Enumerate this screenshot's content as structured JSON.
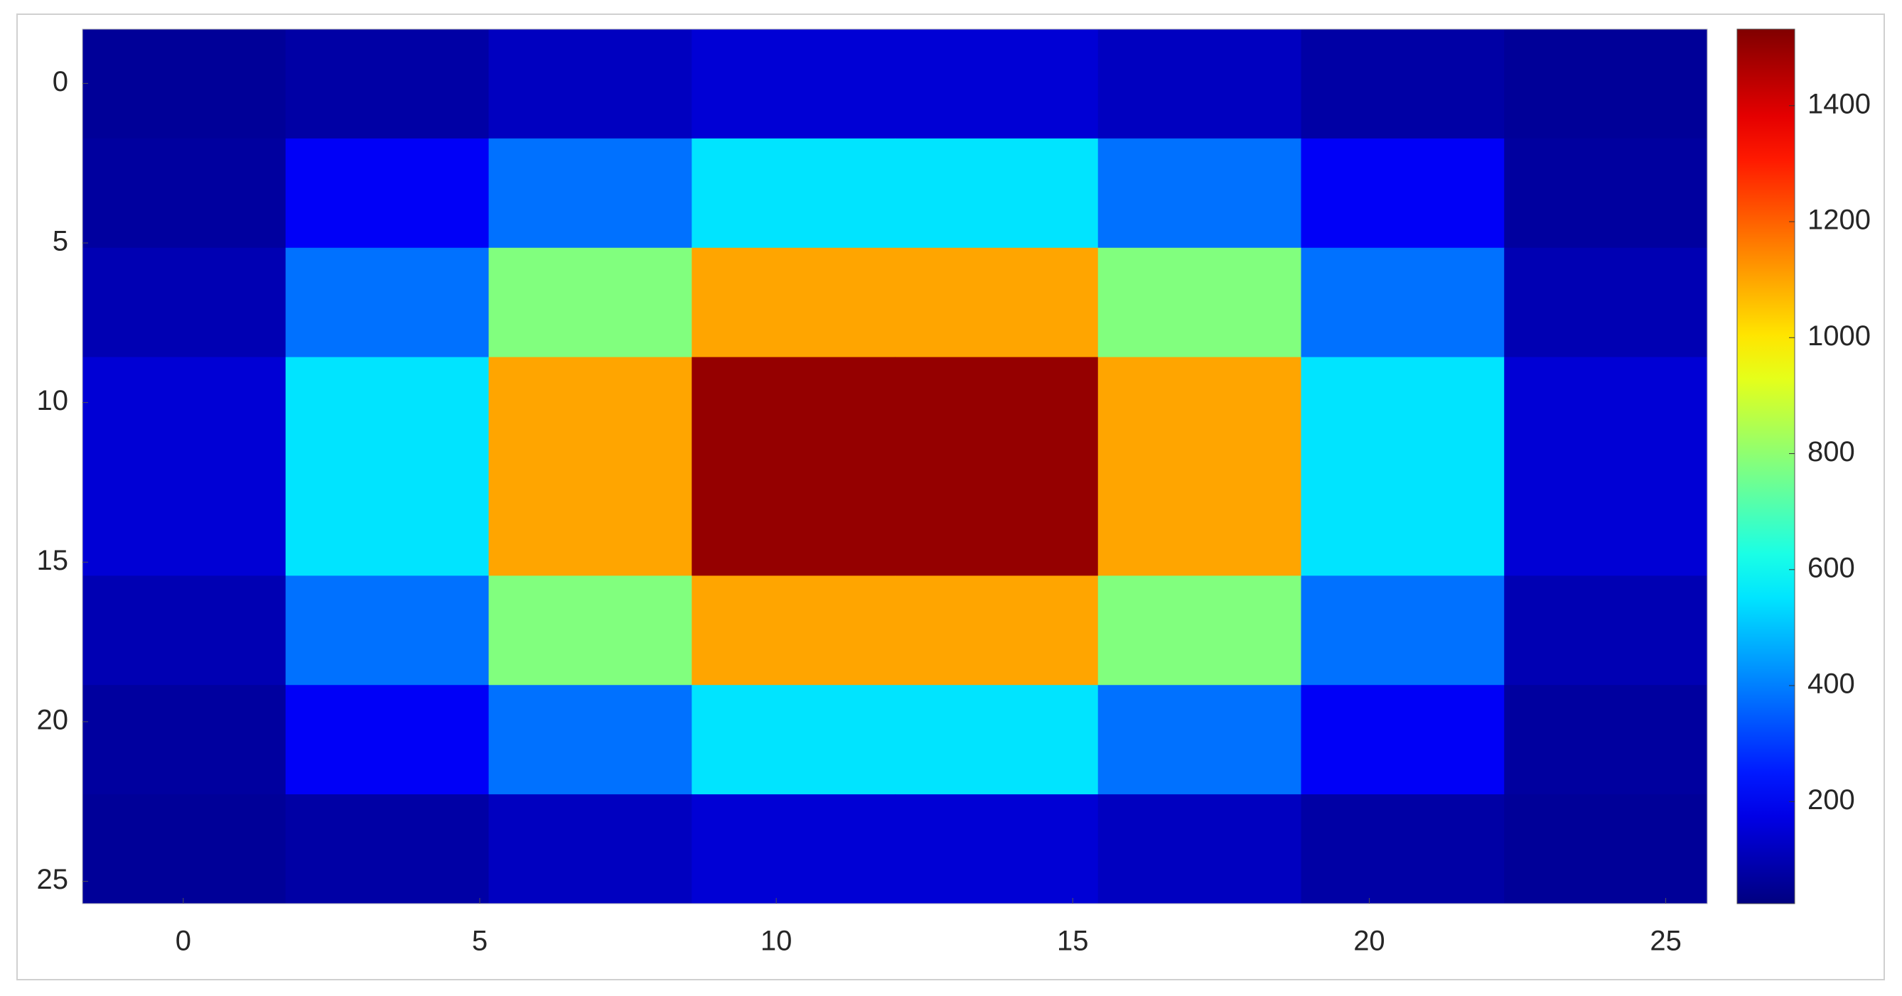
{
  "chart_data": {
    "type": "heatmap",
    "colormap": "jet",
    "values": [
      [
        60,
        80,
        120,
        150,
        150,
        120,
        80,
        60
      ],
      [
        70,
        200,
        380,
        550,
        550,
        380,
        200,
        70
      ],
      [
        100,
        380,
        780,
        1100,
        1100,
        780,
        380,
        100
      ],
      [
        150,
        550,
        1100,
        1500,
        1500,
        1100,
        550,
        150
      ],
      [
        150,
        550,
        1100,
        1500,
        1500,
        1100,
        550,
        150
      ],
      [
        100,
        380,
        780,
        1100,
        1100,
        780,
        380,
        100
      ],
      [
        70,
        200,
        380,
        550,
        550,
        380,
        200,
        70
      ],
      [
        60,
        80,
        120,
        150,
        150,
        120,
        80,
        60
      ]
    ],
    "xlim": [
      -1.7,
      25.7
    ],
    "xticks": [
      0,
      5,
      10,
      15,
      20,
      25
    ],
    "ylim": [
      -1.7,
      25.7
    ],
    "yticks": [
      0,
      5,
      10,
      15,
      20,
      25
    ],
    "clim": [
      24,
      1532
    ],
    "cticks": [
      200,
      400,
      600,
      800,
      1000,
      1200,
      1400
    ]
  }
}
